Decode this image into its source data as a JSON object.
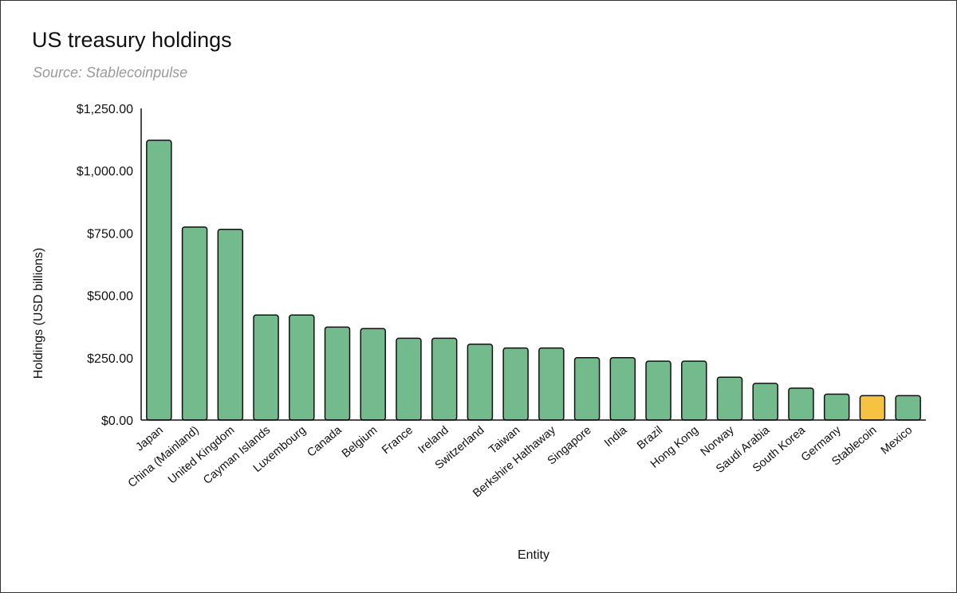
{
  "title": "US treasury holdings",
  "subtitle": "Source: Stablecoinpulse",
  "chart_data": {
    "type": "bar",
    "title": "US treasury holdings",
    "subtitle": "Source: Stablecoinpulse",
    "xlabel": "Entity",
    "ylabel": "Holdings (USD billions)",
    "ylim": [
      0,
      1250
    ],
    "yticks": [
      0,
      250,
      500,
      750,
      1000,
      1250
    ],
    "ytick_labels": [
      "$0.00",
      "$250.00",
      "$500.00",
      "$750.00",
      "$1,000.00",
      "$1,250.00"
    ],
    "grid": false,
    "legend": "none",
    "categories": [
      "Japan",
      "China (Mainland)",
      "United Kingdom",
      "Cayman Islands",
      "Luxembourg",
      "Canada",
      "Belgium",
      "France",
      "Ireland",
      "Switzerland",
      "Taiwan",
      "Berkshire Hathaway",
      "Singapore",
      "India",
      "Brazil",
      "Hong Kong",
      "Norway",
      "Saudi Arabia",
      "South Korea",
      "Germany",
      "Stablecoin",
      "Mexico"
    ],
    "values": [
      1122,
      774,
      765,
      421,
      421,
      373,
      367,
      328,
      328,
      304,
      289,
      289,
      250,
      250,
      236,
      236,
      172,
      147,
      128,
      104,
      98,
      98
    ],
    "colors": {
      "default": "#73ba8d",
      "highlight": "#f5c242",
      "stroke": "#111111"
    },
    "highlight_category": "Stablecoin"
  }
}
